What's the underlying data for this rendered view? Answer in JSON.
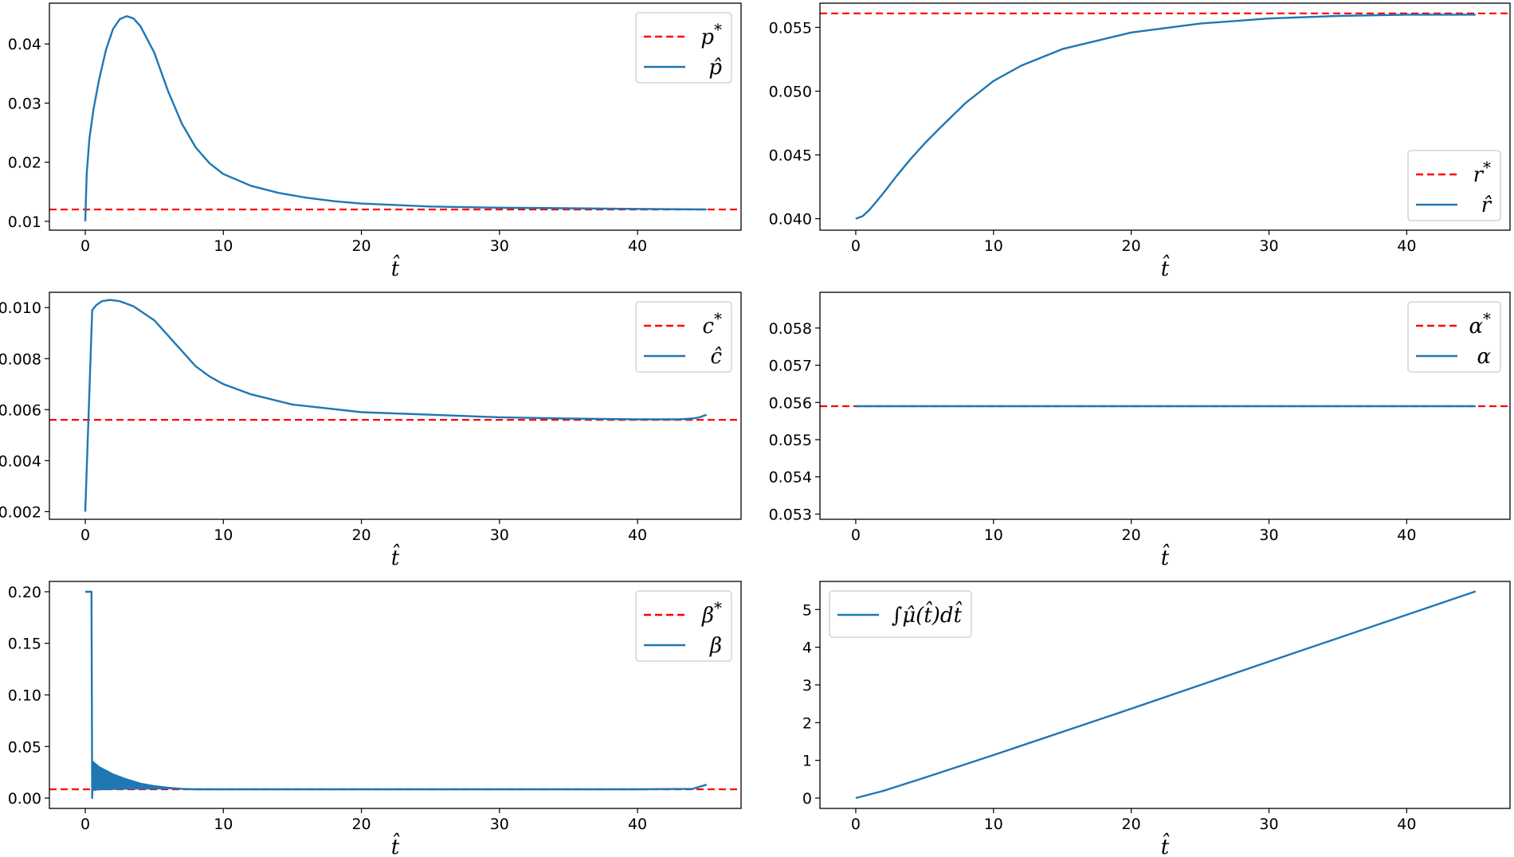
{
  "figure": {
    "background": "#ffffff",
    "series_color": "#1f77b4",
    "reference_color": "#ff0000"
  },
  "chart_data": [
    {
      "id": "p",
      "type": "line",
      "xlabel": "t̂",
      "xlim": [
        -2.6,
        47.5
      ],
      "ylim": [
        0.0085,
        0.0469
      ],
      "xticks": [
        0,
        10,
        20,
        30,
        40
      ],
      "xtick_labels": [
        "0",
        "10",
        "20",
        "30",
        "40"
      ],
      "yticks": [
        0.01,
        0.02,
        0.03,
        0.04
      ],
      "ytick_labels": [
        "0.01",
        "0.02",
        "0.03",
        "0.04"
      ],
      "legend_position": "top-right",
      "reference": {
        "label": "p*",
        "base": "p",
        "superscript": "*",
        "y": 0.012
      },
      "series": [
        {
          "label": "p̂",
          "x": [
            0,
            0.1,
            0.3,
            0.6,
            1,
            1.5,
            2,
            2.5,
            3,
            3.5,
            4,
            5,
            6,
            7,
            8,
            9,
            10,
            12,
            14,
            16,
            18,
            20,
            25,
            30,
            35,
            40,
            45
          ],
          "y": [
            0.01,
            0.018,
            0.024,
            0.029,
            0.034,
            0.039,
            0.0425,
            0.0442,
            0.0447,
            0.0443,
            0.043,
            0.0385,
            0.032,
            0.0265,
            0.0225,
            0.0198,
            0.018,
            0.016,
            0.0148,
            0.014,
            0.0134,
            0.013,
            0.0125,
            0.0123,
            0.0122,
            0.0121,
            0.012
          ]
        }
      ]
    },
    {
      "id": "r",
      "type": "line",
      "xlabel": "t̂",
      "xlim": [
        -2.6,
        47.5
      ],
      "ylim": [
        0.0391,
        0.0569
      ],
      "xticks": [
        0,
        10,
        20,
        30,
        40
      ],
      "xtick_labels": [
        "0",
        "10",
        "20",
        "30",
        "40"
      ],
      "yticks": [
        0.04,
        0.045,
        0.05,
        0.055
      ],
      "ytick_labels": [
        "0.040",
        "0.045",
        "0.050",
        "0.055"
      ],
      "legend_position": "bottom-right",
      "reference": {
        "label": "r*",
        "base": "r",
        "superscript": "*",
        "y": 0.0561
      },
      "series": [
        {
          "label": "r̂",
          "x": [
            0,
            0.5,
            1,
            2,
            3,
            4,
            5,
            6,
            8,
            10,
            12,
            15,
            20,
            25,
            30,
            35,
            40,
            45
          ],
          "y": [
            0.04,
            0.0402,
            0.0407,
            0.042,
            0.0434,
            0.0447,
            0.0459,
            0.047,
            0.0491,
            0.0508,
            0.052,
            0.0533,
            0.0546,
            0.0553,
            0.0557,
            0.0559,
            0.056,
            0.056
          ]
        }
      ]
    },
    {
      "id": "c",
      "type": "line",
      "xlabel": "t̂",
      "xlim": [
        -2.6,
        47.5
      ],
      "ylim": [
        0.0017,
        0.0106
      ],
      "xticks": [
        0,
        10,
        20,
        30,
        40
      ],
      "xtick_labels": [
        "0",
        "10",
        "20",
        "30",
        "40"
      ],
      "yticks": [
        0.002,
        0.004,
        0.006,
        0.008,
        0.01
      ],
      "ytick_labels": [
        "0.002",
        "0.004",
        "0.006",
        "0.008",
        "0.010"
      ],
      "legend_position": "top-right",
      "reference": {
        "label": "c*",
        "base": "c",
        "superscript": "*",
        "y": 0.0056
      },
      "series": [
        {
          "label": "ĉ",
          "x": [
            0,
            0.5,
            0.8,
            1.2,
            1.8,
            2.5,
            3.5,
            5,
            6,
            7,
            8,
            9,
            10,
            12,
            15,
            20,
            25,
            30,
            35,
            40,
            43,
            44,
            44.5,
            45
          ],
          "y": [
            0.002,
            0.0099,
            0.0101,
            0.01025,
            0.0103,
            0.01025,
            0.01005,
            0.0095,
            0.0089,
            0.0083,
            0.0077,
            0.0073,
            0.007,
            0.0066,
            0.0062,
            0.0059,
            0.0058,
            0.0057,
            0.00565,
            0.00562,
            0.00562,
            0.00565,
            0.0057,
            0.0058
          ]
        }
      ]
    },
    {
      "id": "alpha",
      "type": "line",
      "xlabel": "t̂",
      "xlim": [
        -2.6,
        47.5
      ],
      "ylim": [
        0.05286,
        0.05896
      ],
      "xticks": [
        0,
        10,
        20,
        30,
        40
      ],
      "xtick_labels": [
        "0",
        "10",
        "20",
        "30",
        "40"
      ],
      "yticks": [
        0.053,
        0.054,
        0.055,
        0.056,
        0.057,
        0.058
      ],
      "ytick_labels": [
        "0.053",
        "0.054",
        "0.055",
        "0.056",
        "0.057",
        "0.058"
      ],
      "legend_position": "top-right",
      "reference": {
        "label": "α*",
        "base": "α",
        "superscript": "*",
        "y": 0.0559
      },
      "series": [
        {
          "label": "α",
          "x": [
            0,
            45
          ],
          "y": [
            0.0559,
            0.0559
          ]
        }
      ]
    },
    {
      "id": "beta",
      "type": "line",
      "xlabel": "t̂",
      "xlim": [
        -2.6,
        47.5
      ],
      "ylim": [
        -0.01,
        0.21
      ],
      "xticks": [
        0,
        10,
        20,
        30,
        40
      ],
      "xtick_labels": [
        "0",
        "10",
        "20",
        "30",
        "40"
      ],
      "yticks": [
        0,
        0.05,
        0.1,
        0.15,
        0.2
      ],
      "ytick_labels": [
        "0.00",
        "0.05",
        "0.10",
        "0.15",
        "0.20"
      ],
      "legend_position": "top-right",
      "reference": {
        "label": "β*",
        "base": "β",
        "superscript": "*",
        "y": 0.0085
      },
      "series": [
        {
          "label": "β",
          "x": [
            0,
            0.45,
            0.5,
            0.55,
            1,
            2,
            3,
            4,
            5,
            6,
            7,
            8,
            10,
            20,
            30,
            40,
            44,
            44.5,
            45
          ],
          "y": [
            0.2,
            0.2,
            0.0,
            0.035,
            0.03,
            0.023,
            0.018,
            0.014,
            0.0115,
            0.01,
            0.009,
            0.0085,
            0.0085,
            0.0085,
            0.0085,
            0.0085,
            0.009,
            0.011,
            0.013
          ]
        }
      ],
      "band": {
        "x": [
          0.55,
          1,
          2,
          3,
          4,
          5,
          6,
          7,
          8
        ],
        "upper": [
          0.035,
          0.03,
          0.023,
          0.018,
          0.014,
          0.0115,
          0.01,
          0.009,
          0.0085
        ],
        "lower": [
          0.007,
          0.0075,
          0.008,
          0.0082,
          0.0083,
          0.0084,
          0.0085,
          0.0085,
          0.0085
        ]
      }
    },
    {
      "id": "mu",
      "type": "line",
      "xlabel": "t̂",
      "xlim": [
        -2.6,
        47.5
      ],
      "ylim": [
        -0.275,
        5.745
      ],
      "xticks": [
        0,
        10,
        20,
        30,
        40
      ],
      "xtick_labels": [
        "0",
        "10",
        "20",
        "30",
        "40"
      ],
      "yticks": [
        0,
        1,
        2,
        3,
        4,
        5
      ],
      "ytick_labels": [
        "0",
        "1",
        "2",
        "3",
        "4",
        "5"
      ],
      "legend_position": "top-left",
      "reference": null,
      "series": [
        {
          "label": "∫μ̂(t̂)dt̂",
          "x": [
            0,
            2,
            5,
            10,
            20,
            30,
            40,
            45
          ],
          "y": [
            0,
            0.19,
            0.54,
            1.14,
            2.37,
            3.62,
            4.86,
            5.48
          ]
        }
      ]
    }
  ]
}
